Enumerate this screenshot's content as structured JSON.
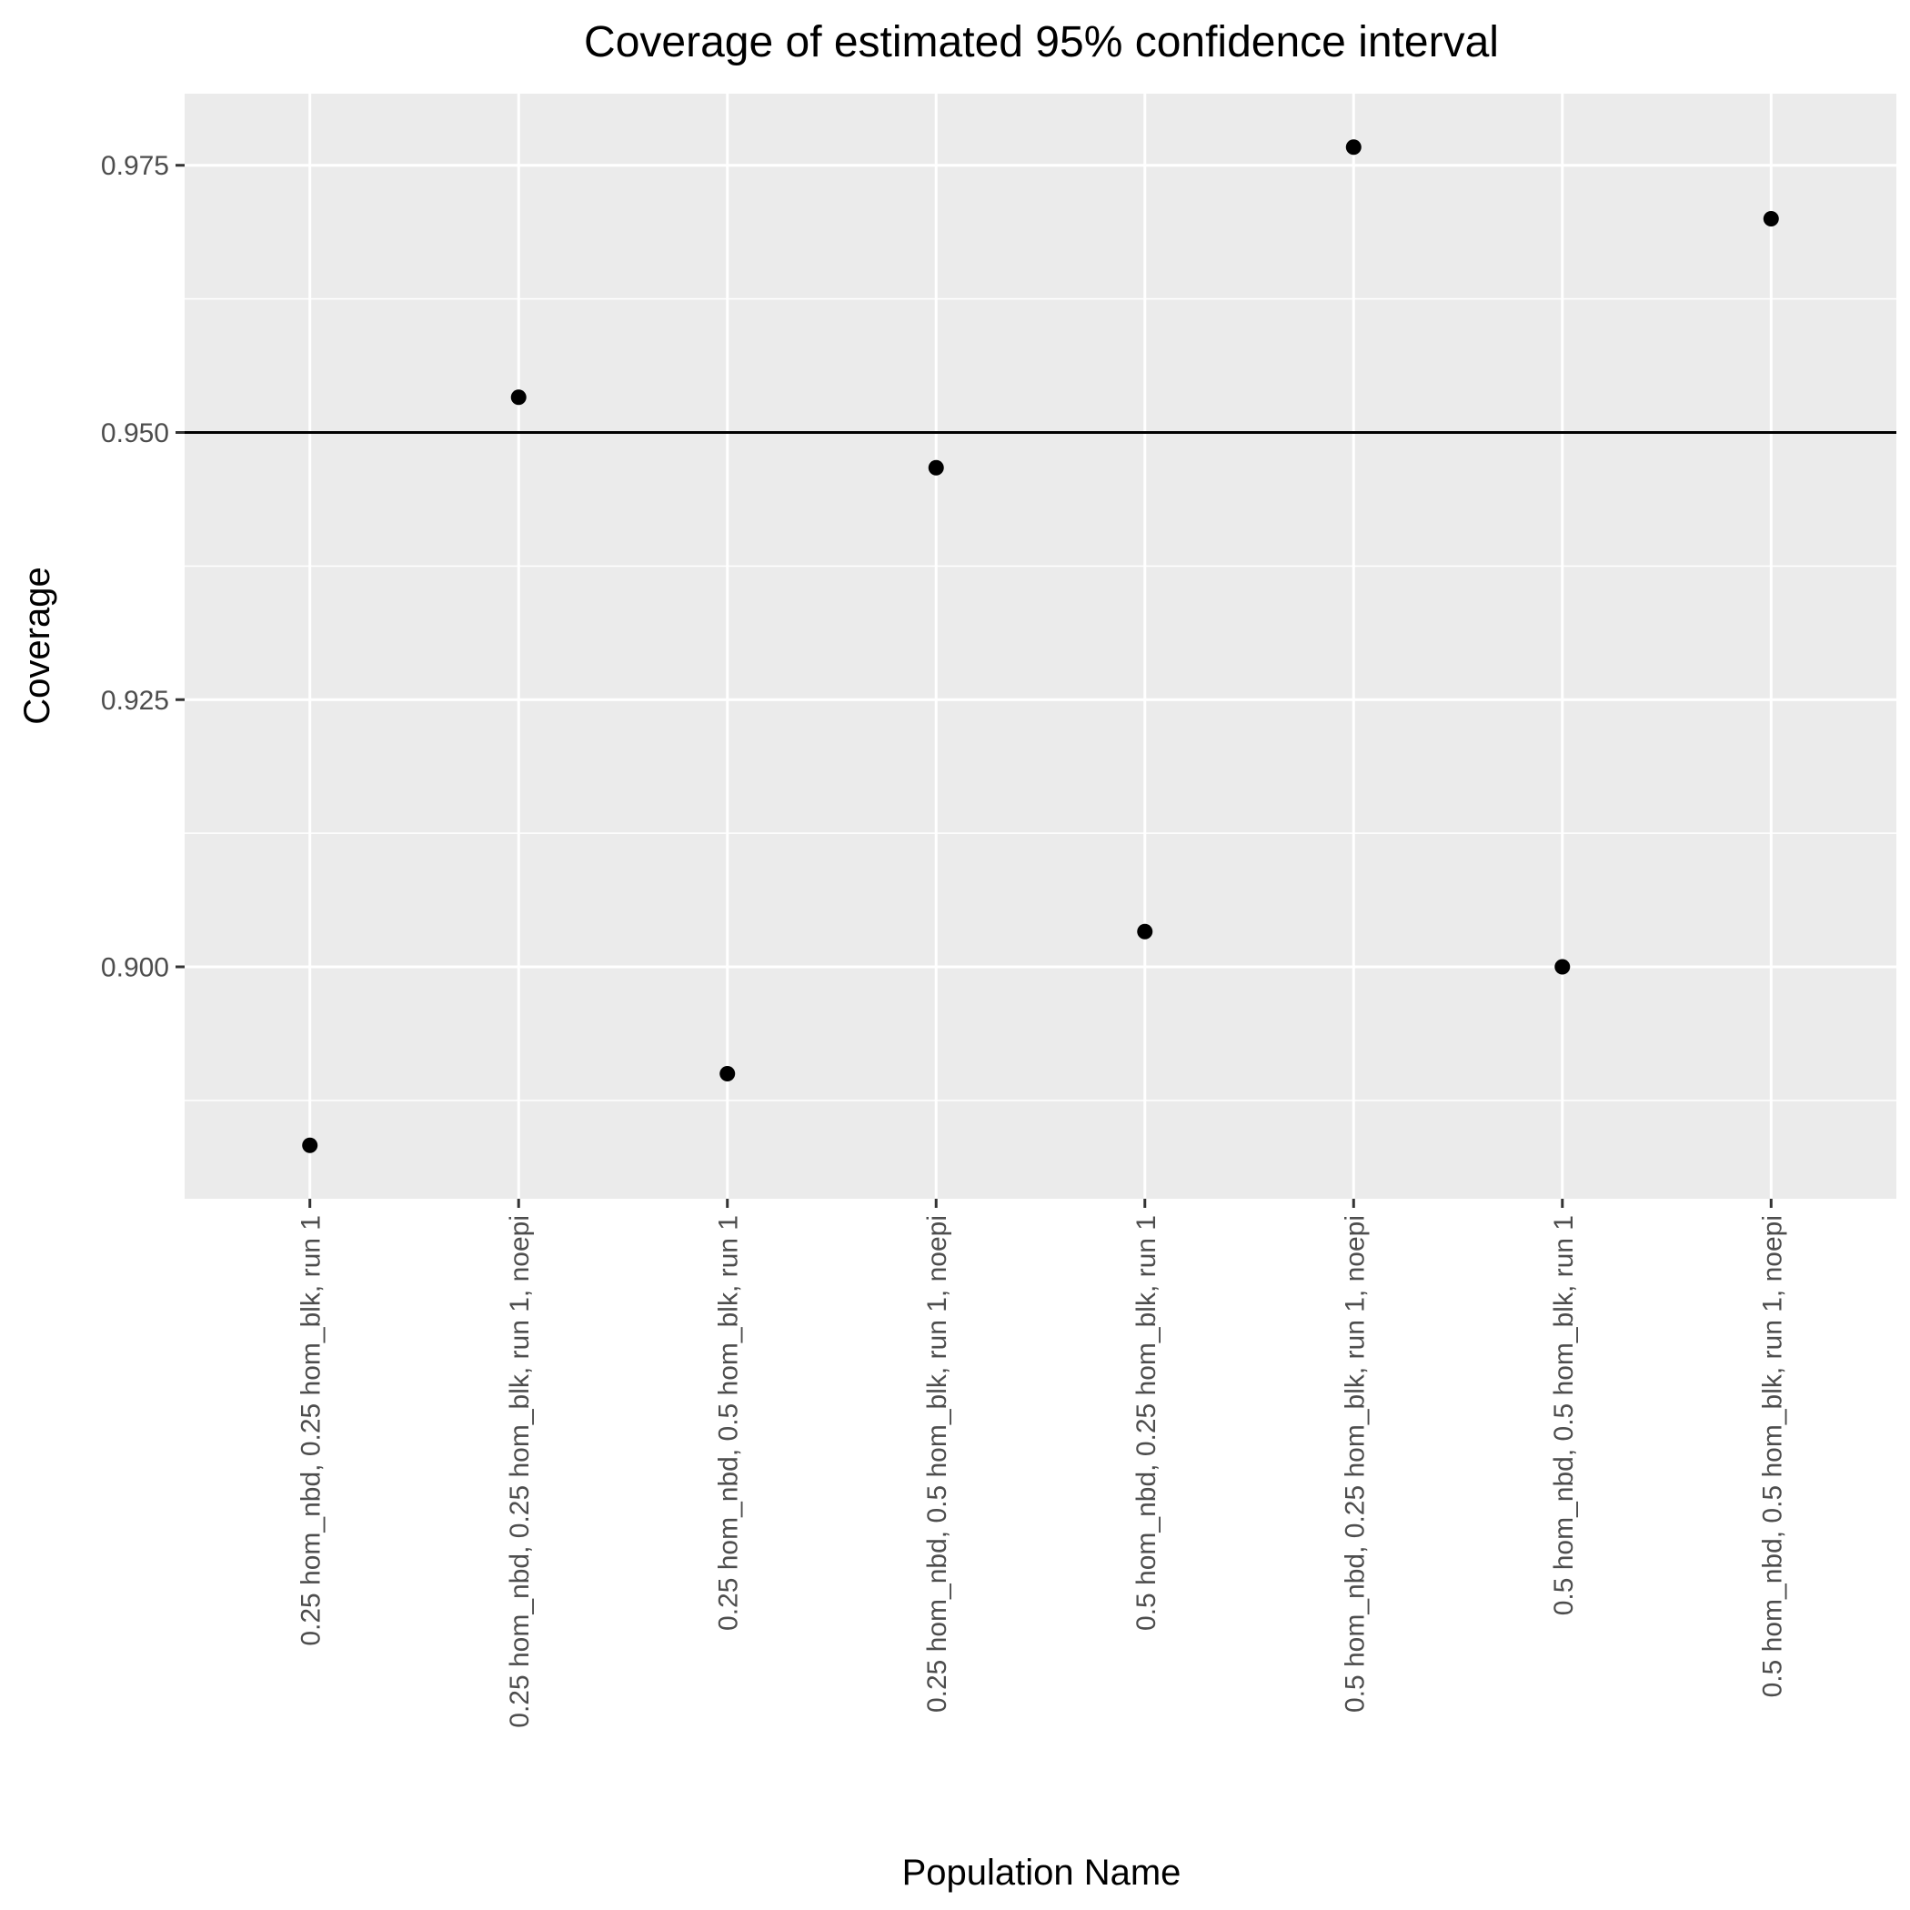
{
  "chart_data": {
    "type": "scatter",
    "title": "Coverage of estimated 95% confidence interval",
    "xlabel": "Population Name",
    "ylabel": "Coverage",
    "categories": [
      "0.25 hom_nbd, 0.25 hom_blk, run 1",
      "0.25 hom_nbd, 0.25 hom_blk, run 1, noepi",
      "0.25 hom_nbd, 0.5 hom_blk, run 1",
      "0.25 hom_nbd, 0.5 hom_blk, run 1, noepi",
      "0.5 hom_nbd, 0.25 hom_blk, run 1",
      "0.5 hom_nbd, 0.25 hom_blk, run 1, noepi",
      "0.5 hom_nbd, 0.5 hom_blk, run 1",
      "0.5 hom_nbd, 0.5 hom_blk, run 1, noepi"
    ],
    "values": [
      0.8833,
      0.9533,
      0.89,
      0.9467,
      0.9033,
      0.9767,
      0.9,
      0.97
    ],
    "ylim": [
      0.8783,
      0.9817
    ],
    "yticks": [
      0.9,
      0.925,
      0.95,
      0.975
    ],
    "ytick_labels": [
      "0.900",
      "0.925",
      "0.950",
      "0.975"
    ],
    "reference_line": 0.95,
    "grid": true,
    "legend": "none",
    "colors": {
      "panel": "#ebebeb",
      "grid": "#ffffff",
      "point": "#000000",
      "reference_line": "#000000",
      "tick_label": "#4d4d4d",
      "tick_mark": "#333333"
    }
  }
}
